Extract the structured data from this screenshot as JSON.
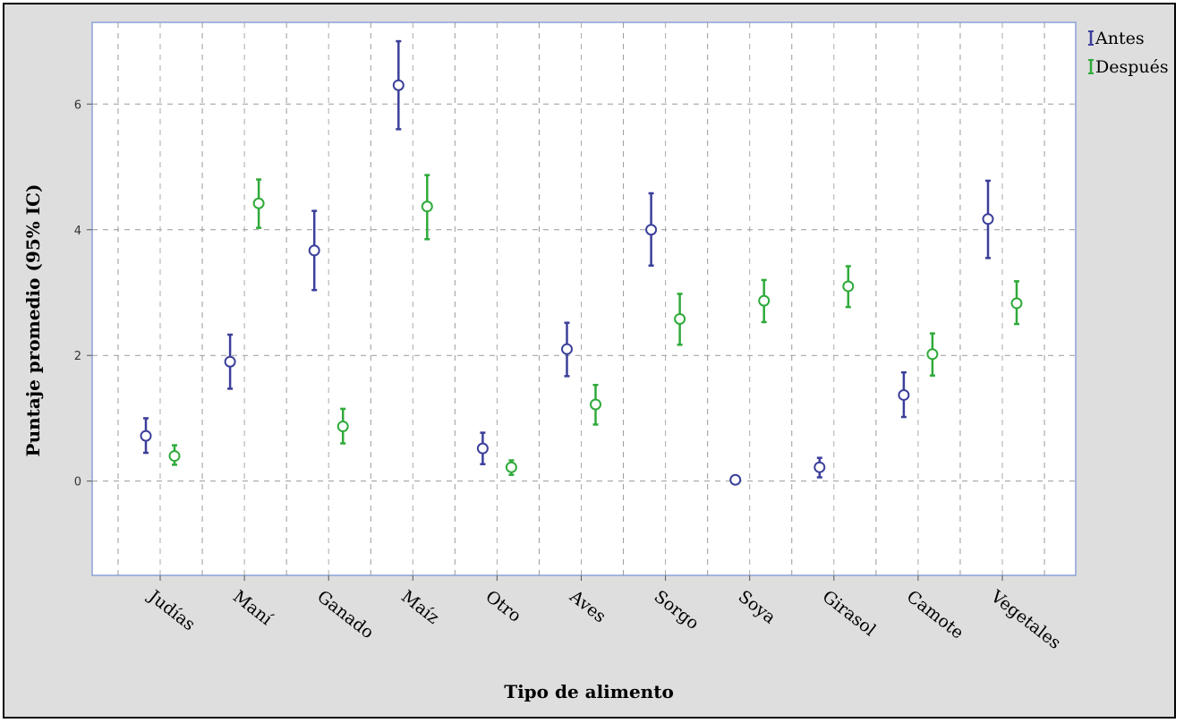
{
  "chart_data": {
    "type": "scatter",
    "subtype": "error-bar",
    "xlabel": "Tipo de alimento",
    "ylabel": "Puntaje promedio (95% IC)",
    "ylim": [
      -1.5,
      7.3
    ],
    "yticks": [
      0,
      2,
      4,
      6
    ],
    "grid": true,
    "legend_position": "top-right",
    "categories": [
      "Judías",
      "Maní",
      "Ganado",
      "Maíz",
      "Otro",
      "Aves",
      "Sorgo",
      "Soya",
      "Girasol",
      "Camote",
      "Vegetales"
    ],
    "series": [
      {
        "name": "Antes",
        "color": "#3b3f9a",
        "mean": [
          0.72,
          1.9,
          3.67,
          6.3,
          0.52,
          2.1,
          4.0,
          0.02,
          0.22,
          1.37,
          4.17
        ],
        "lower": [
          0.45,
          1.47,
          3.04,
          5.6,
          0.27,
          1.67,
          3.43,
          0.0,
          0.06,
          1.02,
          3.55
        ],
        "upper": [
          1.0,
          2.33,
          4.3,
          7.0,
          0.77,
          2.52,
          4.58,
          0.04,
          0.37,
          1.73,
          4.78
        ]
      },
      {
        "name": "Después",
        "color": "#2faa3a",
        "mean": [
          0.4,
          4.42,
          0.87,
          4.37,
          0.22,
          1.22,
          2.58,
          2.87,
          3.1,
          2.02,
          2.83
        ],
        "lower": [
          0.26,
          4.03,
          0.6,
          3.85,
          0.1,
          0.9,
          2.17,
          2.53,
          2.77,
          1.68,
          2.5
        ],
        "upper": [
          0.57,
          4.8,
          1.15,
          4.87,
          0.33,
          1.53,
          2.98,
          3.2,
          3.42,
          2.35,
          3.18
        ]
      }
    ]
  }
}
